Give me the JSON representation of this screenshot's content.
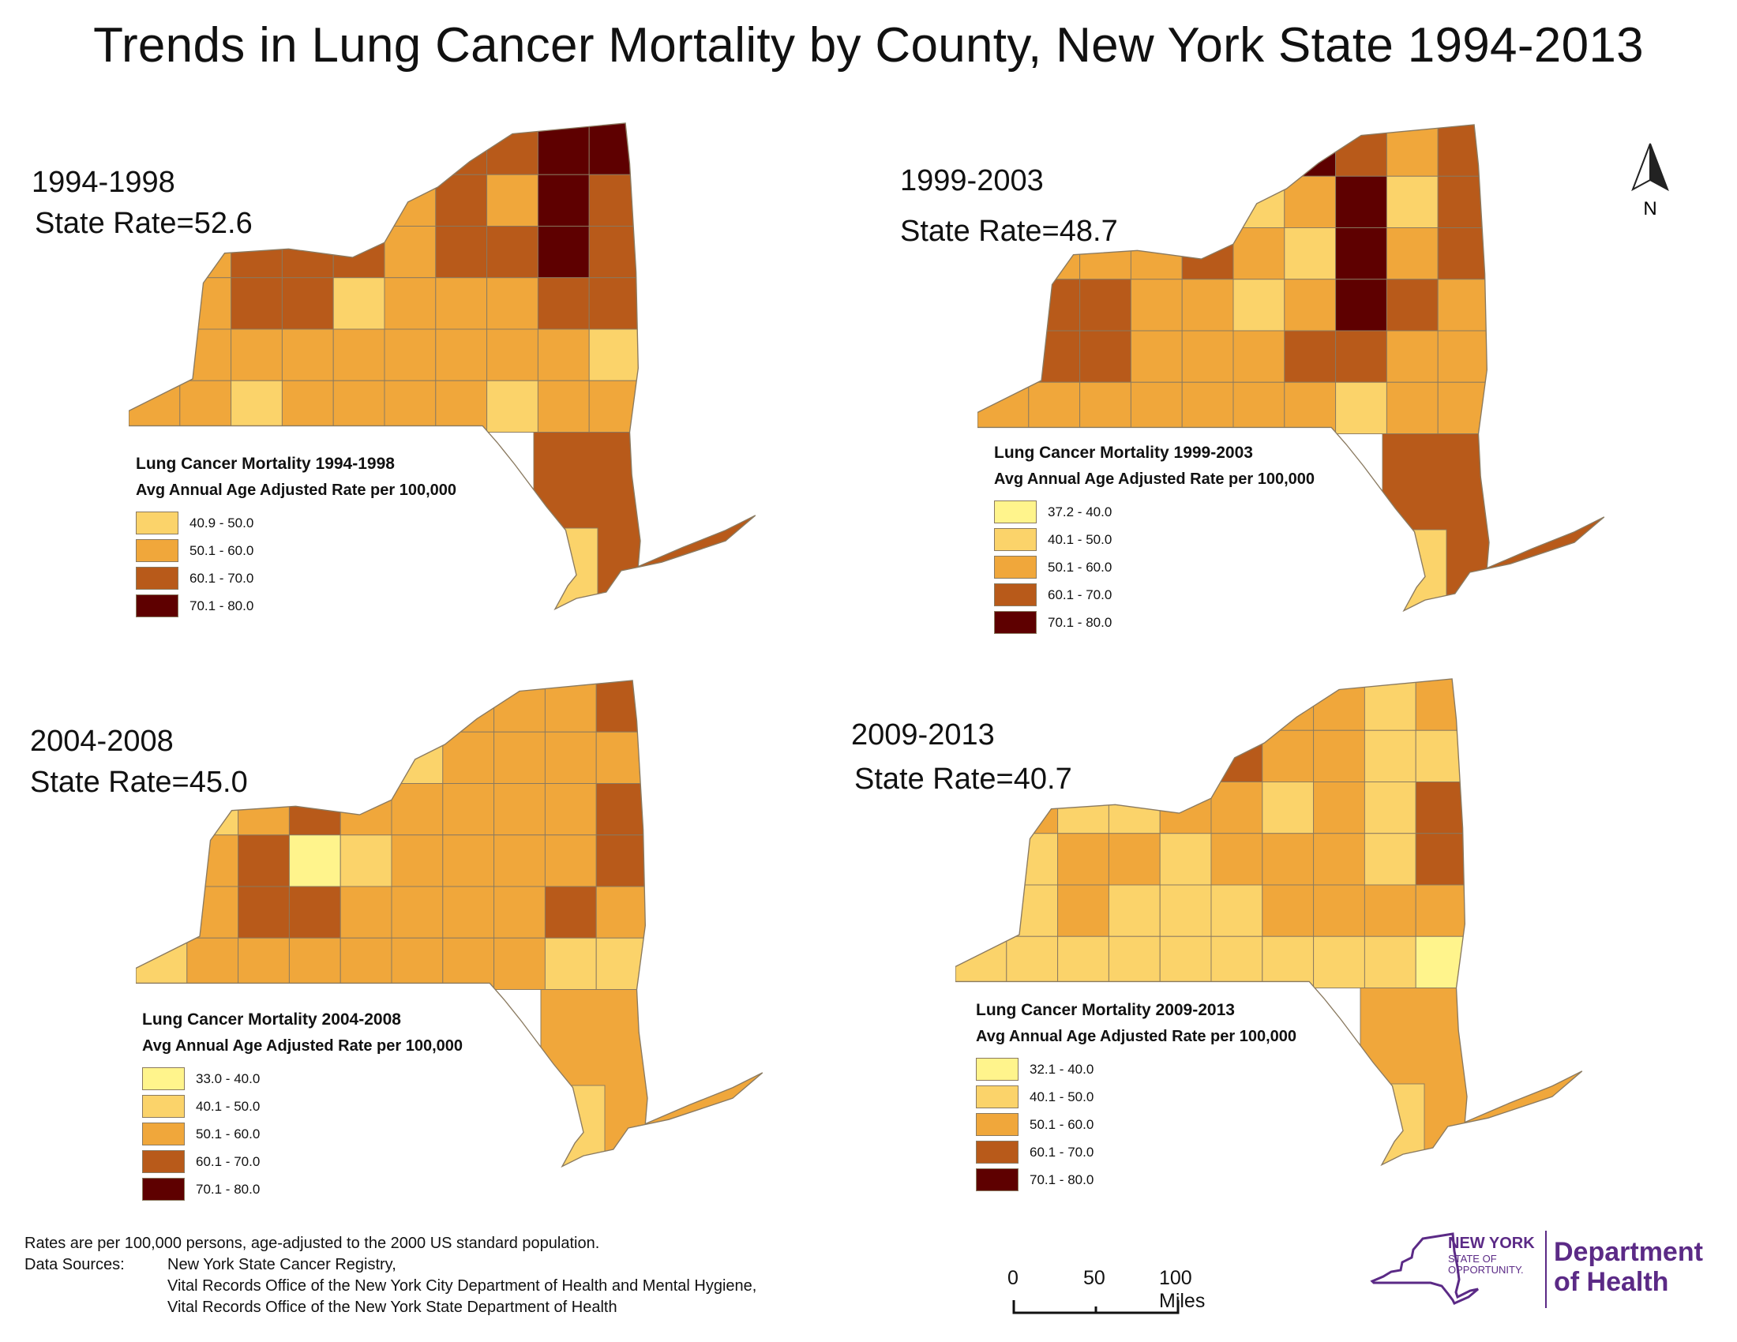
{
  "title": "Trends in Lung Cancer Mortality by County, New York State 1994-2013",
  "colors": {
    "c1": "#fff48c",
    "c2": "#fbd36a",
    "c3": "#f0a73b",
    "c4": "#b85a1a",
    "c5": "#5e0000",
    "border": "#8a7a60"
  },
  "panels": [
    {
      "period": "1994-1998",
      "state_rate": "State Rate=52.6",
      "legend_title": "Lung Cancer Mortality 1994-1998",
      "legend_subtitle": "Avg Annual Age Adjusted Rate per 100,000",
      "legend": [
        {
          "label": "40.9 - 50.0",
          "color": "#fbd36a"
        },
        {
          "label": "50.1 - 60.0",
          "color": "#f0a73b"
        },
        {
          "label": "60.1 - 70.0",
          "color": "#b85a1a"
        },
        {
          "label": "70.1 - 80.0",
          "color": "#5e0000"
        }
      ]
    },
    {
      "period": "1999-2003",
      "state_rate": "State Rate=48.7",
      "legend_title": "Lung Cancer Mortality 1999-2003",
      "legend_subtitle": "Avg Annual Age Adjusted Rate per 100,000",
      "legend": [
        {
          "label": "37.2 - 40.0",
          "color": "#fff48c"
        },
        {
          "label": "40.1 - 50.0",
          "color": "#fbd36a"
        },
        {
          "label": "50.1 - 60.0",
          "color": "#f0a73b"
        },
        {
          "label": "60.1 - 70.0",
          "color": "#b85a1a"
        },
        {
          "label": "70.1 - 80.0",
          "color": "#5e0000"
        }
      ]
    },
    {
      "period": "2004-2008",
      "state_rate": "State Rate=45.0",
      "legend_title": "Lung Cancer Mortality 2004-2008",
      "legend_subtitle": "Avg Annual Age Adjusted Rate per 100,000",
      "legend": [
        {
          "label": "33.0 - 40.0",
          "color": "#fff48c"
        },
        {
          "label": "40.1 - 50.0",
          "color": "#fbd36a"
        },
        {
          "label": "50.1 - 60.0",
          "color": "#f0a73b"
        },
        {
          "label": "60.1 - 70.0",
          "color": "#b85a1a"
        },
        {
          "label": "70.1 - 80.0",
          "color": "#5e0000"
        }
      ]
    },
    {
      "period": "2009-2013",
      "state_rate": "State Rate=40.7",
      "legend_title": "Lung Cancer Mortality 2009-2013",
      "legend_subtitle": "Avg Annual Age Adjusted Rate per 100,000",
      "legend": [
        {
          "label": "32.1 - 40.0",
          "color": "#fff48c"
        },
        {
          "label": "40.1 - 50.0",
          "color": "#fbd36a"
        },
        {
          "label": "50.1 - 60.0",
          "color": "#f0a73b"
        },
        {
          "label": "60.1 - 70.0",
          "color": "#b85a1a"
        },
        {
          "label": "70.1 - 80.0",
          "color": "#5e0000"
        }
      ]
    }
  ],
  "north_label": "N",
  "footer": {
    "note": "Rates are per 100,000 persons, age-adjusted to the 2000 US standard population.",
    "sources_label": "Data Sources:",
    "sources": [
      "New York State Cancer Registry,",
      "Vital Records Office of the New York City Department of Health and Mental Hygiene,",
      "Vital Records Office of the New York State Department of Health"
    ]
  },
  "scale_bar": {
    "labels": [
      "0",
      "50",
      "100 Miles"
    ]
  },
  "logo": {
    "state_line1": "NEW YORK",
    "state_line2": "STATE OF",
    "state_line3": "OPPORTUNITY.",
    "dept_line1": "Department",
    "dept_line2": "of Health",
    "color": "#5b2a86"
  }
}
